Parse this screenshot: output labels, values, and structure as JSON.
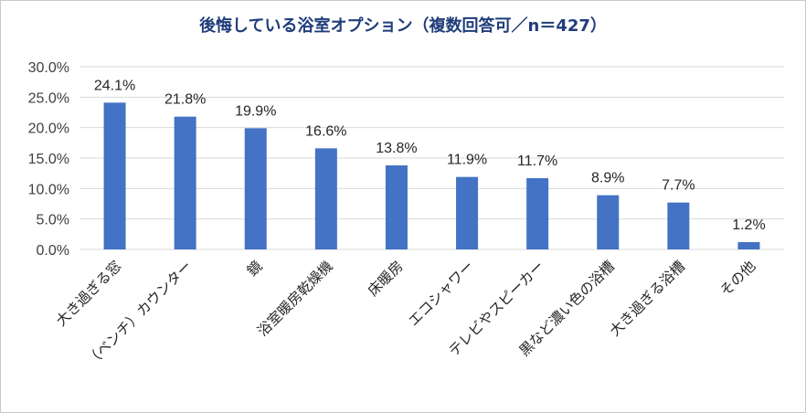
{
  "chart_data": {
    "type": "bar",
    "title": "後悔している浴室オプション（複数回答可／n＝427）",
    "categories": [
      "大き過ぎる窓",
      "（ベンチ）カウンター",
      "鏡",
      "浴室暖房乾燥機",
      "床暖房",
      "エコシャワー",
      "テレビやスピーカー",
      "黒など濃い色の浴槽",
      "大き過ぎる浴槽",
      "その他"
    ],
    "values": [
      24.1,
      21.8,
      19.9,
      16.6,
      13.8,
      11.9,
      11.7,
      8.9,
      7.7,
      1.2
    ],
    "data_labels": [
      "24.1%",
      "21.8%",
      "19.9%",
      "16.6%",
      "13.8%",
      "11.9%",
      "11.7%",
      "8.9%",
      "7.7%",
      "1.2%"
    ],
    "yticks": [
      "0.0%",
      "5.0%",
      "10.0%",
      "15.0%",
      "20.0%",
      "25.0%",
      "30.0%"
    ],
    "ylim": [
      0,
      30
    ],
    "grid": true,
    "legend": "none",
    "bar_color": "#4472c4",
    "grid_color": "#d9d9d9"
  }
}
